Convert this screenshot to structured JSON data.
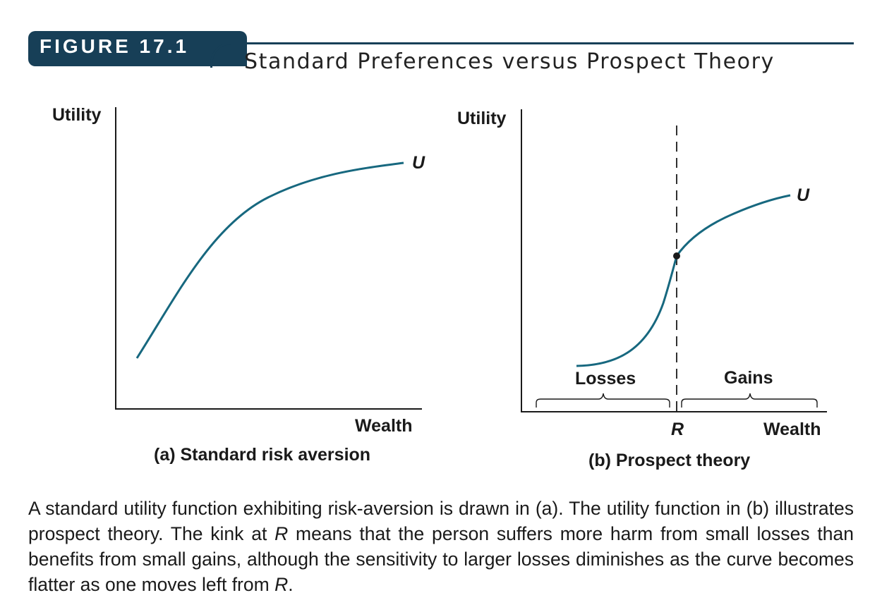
{
  "figure": {
    "label": "FIGURE 17.1",
    "title": "Standard Preferences versus Prospect Theory"
  },
  "panel_a": {
    "y_axis_label": "Utility",
    "x_axis_label": "Wealth",
    "curve_label": "U",
    "caption": "(a) Standard risk aversion"
  },
  "panel_b": {
    "y_axis_label": "Utility",
    "x_axis_label": "Wealth",
    "curve_label": "U",
    "reference_label": "R",
    "losses_label": "Losses",
    "gains_label": "Gains",
    "caption": "(b) Prospect theory"
  },
  "caption": {
    "part1": "A standard utility function exhibiting risk-aversion is drawn in (a). The utility function in (b) illustrates prospect theory. The kink at ",
    "r1": "R",
    "part2": " means that the person suffers more harm from small losses than benefits from small gains, although the sensitivity to larger losses diminishes as the curve becomes flatter as one moves left from ",
    "r2": "R",
    "part3": "."
  },
  "colors": {
    "curve": "#17687f",
    "banner": "#173f57",
    "axis": "#1a1a1a"
  }
}
